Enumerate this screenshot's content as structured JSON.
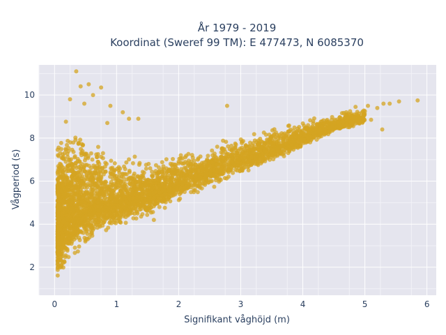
{
  "chart_data": {
    "type": "scatter",
    "title_line1": "År 1979 - 2019",
    "title_line2": "Koordinat (Sweref 99 TM): E 477473, N 6085370",
    "xlabel": "Signifikant våghöjd (m)",
    "ylabel": "Vågperiod (s)",
    "xlim": [
      -0.25,
      6.15
    ],
    "ylim": [
      0.7,
      11.4
    ],
    "x_ticks": [
      0,
      1,
      2,
      3,
      4,
      5,
      6
    ],
    "y_ticks": [
      2,
      4,
      6,
      8,
      10
    ],
    "grid": true,
    "marker_color": "#d4a421",
    "plot_bg": "#e5e5ee",
    "envelope": [
      {
        "x": 0.05,
        "y_low": 1.2,
        "y_high": 8.0
      },
      {
        "x": 0.1,
        "y_low": 1.3,
        "y_high": 8.5
      },
      {
        "x": 0.2,
        "y_low": 1.6,
        "y_high": 9.0
      },
      {
        "x": 0.3,
        "y_low": 2.0,
        "y_high": 9.3
      },
      {
        "x": 0.5,
        "y_low": 2.6,
        "y_high": 8.5
      },
      {
        "x": 0.7,
        "y_low": 3.1,
        "y_high": 8.0
      },
      {
        "x": 1.0,
        "y_low": 3.6,
        "y_high": 7.5
      },
      {
        "x": 1.5,
        "y_low": 4.3,
        "y_high": 7.0
      },
      {
        "x": 2.0,
        "y_low": 5.0,
        "y_high": 7.5
      },
      {
        "x": 2.5,
        "y_low": 5.6,
        "y_high": 7.8
      },
      {
        "x": 3.0,
        "y_low": 6.2,
        "y_high": 8.4
      },
      {
        "x": 3.5,
        "y_low": 6.8,
        "y_high": 8.6
      },
      {
        "x": 4.0,
        "y_low": 7.5,
        "y_high": 8.9
      },
      {
        "x": 4.5,
        "y_low": 8.2,
        "y_high": 9.2
      },
      {
        "x": 5.0,
        "y_low": 8.6,
        "y_high": 9.5
      }
    ],
    "outliers": [
      {
        "x": 0.35,
        "y": 11.1
      },
      {
        "x": 0.42,
        "y": 10.4
      },
      {
        "x": 0.55,
        "y": 10.5
      },
      {
        "x": 0.62,
        "y": 10.0
      },
      {
        "x": 0.75,
        "y": 10.35
      },
      {
        "x": 0.25,
        "y": 9.8
      },
      {
        "x": 0.48,
        "y": 9.6
      },
      {
        "x": 0.9,
        "y": 9.5
      },
      {
        "x": 1.1,
        "y": 9.2
      },
      {
        "x": 1.2,
        "y": 8.9
      },
      {
        "x": 1.35,
        "y": 8.9
      },
      {
        "x": 0.85,
        "y": 8.7
      },
      {
        "x": 2.78,
        "y": 9.5
      },
      {
        "x": 4.7,
        "y": 9.2
      },
      {
        "x": 4.85,
        "y": 9.45
      },
      {
        "x": 5.0,
        "y": 9.25
      },
      {
        "x": 5.05,
        "y": 9.5
      },
      {
        "x": 5.2,
        "y": 9.4
      },
      {
        "x": 5.3,
        "y": 9.6
      },
      {
        "x": 5.4,
        "y": 9.6
      },
      {
        "x": 5.55,
        "y": 9.7
      },
      {
        "x": 5.85,
        "y": 9.75
      },
      {
        "x": 4.98,
        "y": 8.9
      },
      {
        "x": 5.1,
        "y": 8.85
      },
      {
        "x": 5.28,
        "y": 8.4
      },
      {
        "x": 4.6,
        "y": 8.6
      },
      {
        "x": 4.8,
        "y": 8.7
      },
      {
        "x": 0.05,
        "y": 6.4
      },
      {
        "x": 1.6,
        "y": 4.2
      },
      {
        "x": 3.2,
        "y": 6.9
      }
    ]
  }
}
